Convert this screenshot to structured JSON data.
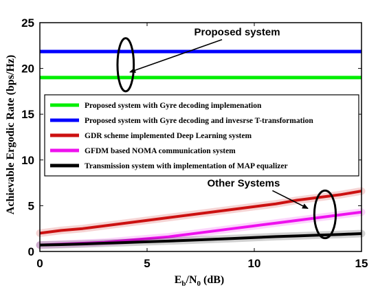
{
  "chart_data": {
    "type": "line",
    "xlabel": {
      "main": "E",
      "sub1": "b",
      "mid": "/N",
      "sub2": "0",
      "tail": " (dB)"
    },
    "ylabel": "Achievable Ergodic Rate (bps/Hz)",
    "xlim": [
      0,
      15
    ],
    "ylim": [
      0,
      25
    ],
    "xticks": [
      0,
      5,
      10,
      15
    ],
    "yticks": [
      0,
      5,
      10,
      15,
      20,
      25
    ],
    "grid": false,
    "legend_position": "center",
    "series": [
      {
        "name": "Proposed system with Gyre decoding implemenation",
        "color": "#00ee00",
        "x": [
          0,
          15
        ],
        "y": [
          19.0,
          19.0
        ]
      },
      {
        "name": "Proposed system with Gyre decoding and invesrse T-transformation",
        "color": "#0000ff",
        "x": [
          0,
          15
        ],
        "y": [
          21.85,
          21.85
        ]
      },
      {
        "name": "GDR scheme implemented Deep Learning system",
        "color": "#cc1111",
        "x": [
          0,
          1,
          2,
          3,
          4,
          5,
          6,
          7,
          8,
          9,
          10,
          11,
          12,
          13,
          14,
          15
        ],
        "y": [
          2.0,
          2.3,
          2.5,
          2.8,
          3.1,
          3.4,
          3.7,
          4.0,
          4.3,
          4.6,
          4.9,
          5.2,
          5.6,
          5.9,
          6.2,
          6.6
        ]
      },
      {
        "name": "GFDM  based  NOMA communication system",
        "color": "#ee11ee",
        "x": [
          0,
          1,
          2,
          3,
          4,
          5,
          6,
          7,
          8,
          9,
          10,
          11,
          12,
          13,
          14,
          15
        ],
        "y": [
          0.7,
          0.8,
          0.9,
          1.0,
          1.2,
          1.4,
          1.6,
          1.9,
          2.2,
          2.5,
          2.8,
          3.1,
          3.4,
          3.7,
          4.0,
          4.3
        ]
      },
      {
        "name": "Transmission system with implementation of MAP equalizer",
        "color": "#000000",
        "x": [
          0,
          1,
          2,
          3,
          4,
          5,
          6,
          7,
          8,
          9,
          10,
          11,
          12,
          13,
          14,
          15
        ],
        "y": [
          0.7,
          0.75,
          0.82,
          0.9,
          0.98,
          1.06,
          1.14,
          1.23,
          1.32,
          1.42,
          1.52,
          1.62,
          1.7,
          1.78,
          1.86,
          1.95
        ]
      }
    ],
    "annotations": [
      {
        "text": "Proposed system",
        "x": 9.2,
        "y": 23.6,
        "arrow_to": [
          4.2,
          19.6
        ]
      },
      {
        "text": "Other Systems",
        "x": 9.5,
        "y": 7.1,
        "arrow_to": [
          12.5,
          4.7
        ]
      }
    ],
    "ellipses": [
      {
        "cx": 4.0,
        "cy": 20.4,
        "rx": 0.38,
        "ry": 2.9
      },
      {
        "cx": 13.3,
        "cy": 4.05,
        "rx": 0.5,
        "ry": 2.6
      }
    ]
  }
}
